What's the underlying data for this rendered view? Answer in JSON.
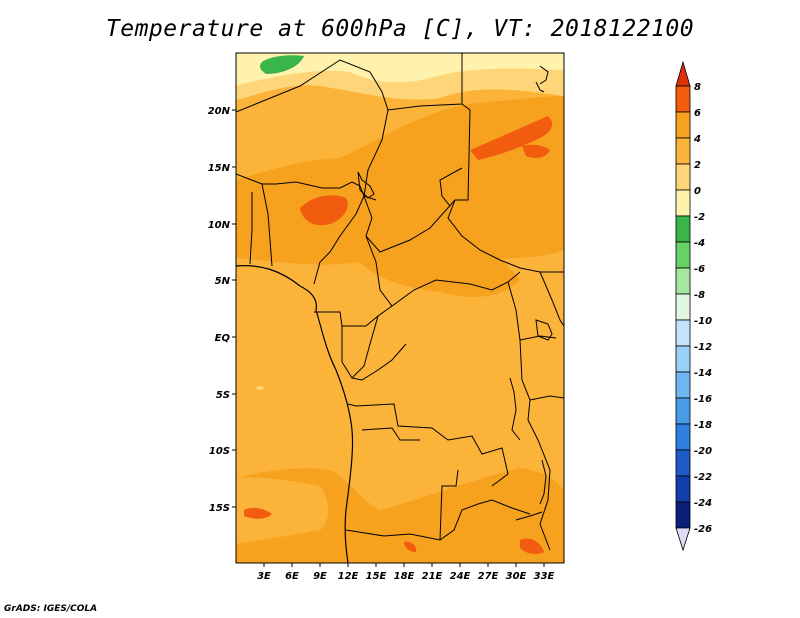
{
  "title": "Temperature at 600hPa [C], VT: 2018122100",
  "credit": "GrADS: IGES/COLA",
  "map": {
    "variable": "Temperature",
    "level": "600hPa",
    "unit": "C",
    "valid_time": "2018122100",
    "region": "Central Africa",
    "lat_range": [
      -20,
      24
    ],
    "lon_range": [
      0,
      35
    ],
    "lat_labels": [
      "20N",
      "15N",
      "10N",
      "5N",
      "EQ",
      "5S",
      "10S",
      "15S"
    ],
    "lon_labels": [
      "3E",
      "6E",
      "9E",
      "12E",
      "15E",
      "18E",
      "21E",
      "24E",
      "27E",
      "30E",
      "33E"
    ]
  },
  "colorbar": {
    "labels": [
      "8",
      "6",
      "4",
      "2",
      "0",
      "-2",
      "-4",
      "-6",
      "-8",
      "-10",
      "-12",
      "-14",
      "-16",
      "-18",
      "-20",
      "-22",
      "-24",
      "-26"
    ],
    "colors": [
      "#e0300a",
      "#f25c0e",
      "#f7a21e",
      "#fbb33a",
      "#fed679",
      "#fff2ad",
      "#3ab549",
      "#66d266",
      "#a6e69e",
      "#e2f7e2",
      "#c4e3fb",
      "#9acff7",
      "#70b6f2",
      "#4a9be8",
      "#2f7fe0",
      "#1f5ac9",
      "#123dac",
      "#0a1f7a",
      "#dcdcf5"
    ]
  }
}
